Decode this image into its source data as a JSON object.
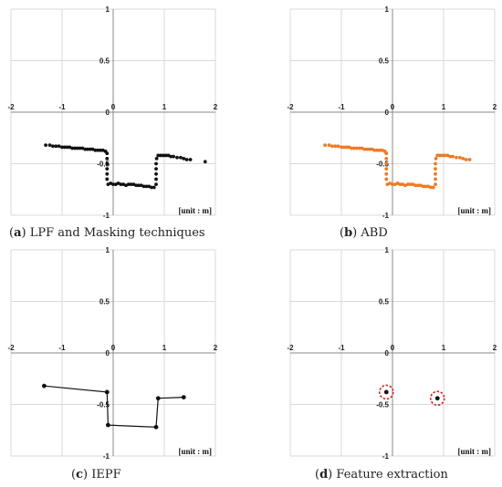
{
  "colors": {
    "black": "#111111",
    "orange": "#ef7a24",
    "grid": "#d9d9d9",
    "axis": "#888888",
    "highlight": "#d62020"
  },
  "chart_data": [
    {
      "type": "scatter",
      "caption_letter": "a",
      "caption_text": " LPF and Masking techniques",
      "unit_label": "[unit : m]",
      "xlim": [
        -2,
        2
      ],
      "ylim": [
        -1,
        1
      ],
      "xticks": [
        -2,
        -1,
        0,
        1,
        2
      ],
      "yticks": [
        1,
        0.5,
        0,
        -0.5,
        -1
      ],
      "xticklabels": [
        "-2",
        "-1",
        "0",
        "1",
        "2"
      ],
      "yticklabels": [
        "1",
        "0.5",
        "0",
        "-0.5",
        "-1"
      ],
      "grid": true,
      "series": [
        {
          "color": "#111111",
          "points": [
            [
              -1.32,
              -0.32
            ],
            [
              -1.24,
              -0.32
            ],
            [
              -1.18,
              -0.33
            ],
            [
              -1.12,
              -0.33
            ],
            [
              -1.06,
              -0.33
            ],
            [
              -1.0,
              -0.34
            ],
            [
              -0.95,
              -0.34
            ],
            [
              -0.9,
              -0.34
            ],
            [
              -0.85,
              -0.34
            ],
            [
              -0.8,
              -0.35
            ],
            [
              -0.75,
              -0.35
            ],
            [
              -0.7,
              -0.35
            ],
            [
              -0.65,
              -0.35
            ],
            [
              -0.6,
              -0.35
            ],
            [
              -0.55,
              -0.36
            ],
            [
              -0.5,
              -0.36
            ],
            [
              -0.45,
              -0.36
            ],
            [
              -0.4,
              -0.36
            ],
            [
              -0.35,
              -0.37
            ],
            [
              -0.3,
              -0.37
            ],
            [
              -0.25,
              -0.37
            ],
            [
              -0.2,
              -0.37
            ],
            [
              -0.15,
              -0.38
            ],
            [
              -0.12,
              -0.4
            ],
            [
              -0.12,
              -0.45
            ],
            [
              -0.12,
              -0.5
            ],
            [
              -0.12,
              -0.55
            ],
            [
              -0.12,
              -0.6
            ],
            [
              -0.12,
              -0.65
            ],
            [
              -0.1,
              -0.7
            ],
            [
              -0.05,
              -0.69
            ],
            [
              0.0,
              -0.7
            ],
            [
              0.05,
              -0.7
            ],
            [
              0.1,
              -0.69
            ],
            [
              0.15,
              -0.7
            ],
            [
              0.2,
              -0.7
            ],
            [
              0.25,
              -0.71
            ],
            [
              0.3,
              -0.7
            ],
            [
              0.35,
              -0.7
            ],
            [
              0.4,
              -0.7
            ],
            [
              0.45,
              -0.71
            ],
            [
              0.5,
              -0.71
            ],
            [
              0.55,
              -0.71
            ],
            [
              0.6,
              -0.72
            ],
            [
              0.65,
              -0.72
            ],
            [
              0.7,
              -0.72
            ],
            [
              0.75,
              -0.73
            ],
            [
              0.8,
              -0.73
            ],
            [
              0.84,
              -0.7
            ],
            [
              0.84,
              -0.65
            ],
            [
              0.84,
              -0.6
            ],
            [
              0.84,
              -0.55
            ],
            [
              0.84,
              -0.5
            ],
            [
              0.85,
              -0.45
            ],
            [
              0.88,
              -0.42
            ],
            [
              0.93,
              -0.42
            ],
            [
              0.98,
              -0.42
            ],
            [
              1.03,
              -0.42
            ],
            [
              1.08,
              -0.42
            ],
            [
              1.13,
              -0.43
            ],
            [
              1.18,
              -0.43
            ],
            [
              1.25,
              -0.44
            ],
            [
              1.32,
              -0.44
            ],
            [
              1.38,
              -0.45
            ],
            [
              1.44,
              -0.46
            ],
            [
              1.51,
              -0.46
            ],
            [
              1.8,
              -0.48
            ]
          ]
        }
      ]
    },
    {
      "type": "scatter",
      "caption_letter": "b",
      "caption_text": " ABD",
      "unit_label": "[unit : m]",
      "xlim": [
        -2,
        2
      ],
      "ylim": [
        -1,
        1
      ],
      "xticks": [
        -2,
        -1,
        0,
        1,
        2
      ],
      "yticks": [
        1,
        0.5,
        0,
        -0.5,
        -1
      ],
      "xticklabels": [
        "-2",
        "-1",
        "0",
        "1",
        "2"
      ],
      "yticklabels": [
        "1",
        "0.5",
        "0",
        "-0.5",
        "-1"
      ],
      "grid": true,
      "series": [
        {
          "color": "#ef7a24",
          "points": [
            [
              -1.32,
              -0.32
            ],
            [
              -1.24,
              -0.32
            ],
            [
              -1.18,
              -0.33
            ],
            [
              -1.12,
              -0.33
            ],
            [
              -1.06,
              -0.33
            ],
            [
              -1.0,
              -0.34
            ],
            [
              -0.95,
              -0.34
            ],
            [
              -0.9,
              -0.34
            ],
            [
              -0.85,
              -0.34
            ],
            [
              -0.8,
              -0.35
            ],
            [
              -0.75,
              -0.35
            ],
            [
              -0.7,
              -0.35
            ],
            [
              -0.65,
              -0.35
            ],
            [
              -0.6,
              -0.35
            ],
            [
              -0.55,
              -0.36
            ],
            [
              -0.5,
              -0.36
            ],
            [
              -0.45,
              -0.36
            ],
            [
              -0.4,
              -0.36
            ],
            [
              -0.35,
              -0.37
            ],
            [
              -0.3,
              -0.37
            ],
            [
              -0.25,
              -0.37
            ],
            [
              -0.2,
              -0.37
            ],
            [
              -0.15,
              -0.38
            ],
            [
              -0.12,
              -0.4
            ],
            [
              -0.12,
              -0.45
            ],
            [
              -0.12,
              -0.5
            ],
            [
              -0.12,
              -0.55
            ],
            [
              -0.12,
              -0.6
            ],
            [
              -0.12,
              -0.65
            ],
            [
              -0.1,
              -0.7
            ],
            [
              -0.05,
              -0.69
            ],
            [
              0.0,
              -0.7
            ],
            [
              0.05,
              -0.7
            ],
            [
              0.1,
              -0.69
            ],
            [
              0.15,
              -0.7
            ],
            [
              0.2,
              -0.7
            ],
            [
              0.25,
              -0.71
            ],
            [
              0.3,
              -0.7
            ],
            [
              0.35,
              -0.7
            ],
            [
              0.4,
              -0.7
            ],
            [
              0.45,
              -0.71
            ],
            [
              0.5,
              -0.71
            ],
            [
              0.55,
              -0.71
            ],
            [
              0.6,
              -0.72
            ],
            [
              0.65,
              -0.72
            ],
            [
              0.7,
              -0.72
            ],
            [
              0.75,
              -0.73
            ],
            [
              0.8,
              -0.73
            ],
            [
              0.84,
              -0.7
            ],
            [
              0.84,
              -0.65
            ],
            [
              0.84,
              -0.6
            ],
            [
              0.84,
              -0.55
            ],
            [
              0.84,
              -0.5
            ],
            [
              0.85,
              -0.45
            ],
            [
              0.88,
              -0.42
            ],
            [
              0.93,
              -0.42
            ],
            [
              0.98,
              -0.42
            ],
            [
              1.03,
              -0.42
            ],
            [
              1.08,
              -0.42
            ],
            [
              1.13,
              -0.43
            ],
            [
              1.18,
              -0.43
            ],
            [
              1.25,
              -0.44
            ],
            [
              1.32,
              -0.44
            ],
            [
              1.38,
              -0.45
            ],
            [
              1.44,
              -0.46
            ],
            [
              1.51,
              -0.46
            ]
          ]
        }
      ]
    },
    {
      "type": "line",
      "caption_letter": "c",
      "caption_text": " IEPF",
      "unit_label": "[unit : m]",
      "xlim": [
        -2,
        2
      ],
      "ylim": [
        -1,
        1
      ],
      "xticks": [
        -2,
        -1,
        0,
        1,
        2
      ],
      "yticks": [
        1,
        0.5,
        0,
        -0.5,
        -1
      ],
      "xticklabels": [
        "-2",
        "-1",
        "0",
        "1",
        "2"
      ],
      "yticklabels": [
        "1",
        "0.5",
        "0",
        "-0.5",
        "-1"
      ],
      "grid": true,
      "series": [
        {
          "color": "#111111",
          "points": [
            [
              -1.35,
              -0.32
            ],
            [
              -0.12,
              -0.38
            ],
            [
              -0.1,
              -0.7
            ],
            [
              0.84,
              -0.72
            ],
            [
              0.88,
              -0.44
            ],
            [
              1.38,
              -0.43
            ]
          ]
        }
      ]
    },
    {
      "type": "scatter",
      "caption_letter": "d",
      "caption_text": " Feature extraction",
      "unit_label": "[unit : m]",
      "xlim": [
        -2,
        2
      ],
      "ylim": [
        -1,
        1
      ],
      "xticks": [
        -2,
        -1,
        0,
        1,
        2
      ],
      "yticks": [
        1,
        0.5,
        0,
        -0.5,
        -1
      ],
      "xticklabels": [
        "-2",
        "-1",
        "0",
        "1",
        "2"
      ],
      "yticklabels": [
        "1",
        "0.5",
        "0",
        "-0.5",
        "-1"
      ],
      "grid": true,
      "series": [
        {
          "color": "#111111",
          "points": [
            [
              -0.12,
              -0.38
            ],
            [
              0.88,
              -0.44
            ]
          ],
          "highlighted": true
        }
      ]
    }
  ]
}
